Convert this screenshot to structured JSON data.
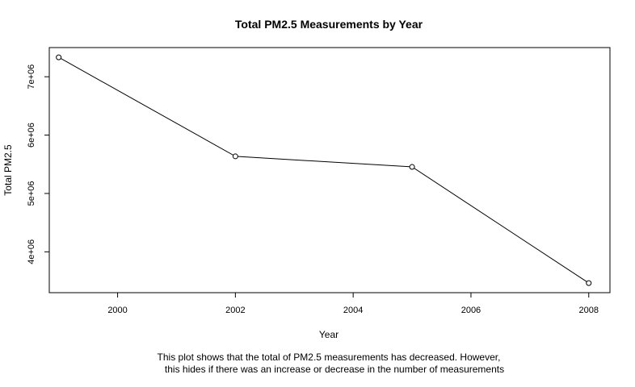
{
  "chart_data": {
    "type": "line",
    "title": "Total PM2.5 Measurements by Year",
    "xlabel": "Year",
    "ylabel": "Total PM2.5",
    "x": [
      1999,
      2002,
      2005,
      2008
    ],
    "y": [
      7332967,
      5635780,
      5454703,
      3464206
    ],
    "x_ticks": [
      "2000",
      "2002",
      "2004",
      "2006",
      "2008"
    ],
    "y_ticks": [
      "4e+06",
      "5e+06",
      "6e+06",
      "7e+06"
    ],
    "xlim": [
      1998.84,
      2008.36
    ],
    "ylim": [
      3300000,
      7500000
    ],
    "markers": "open-circle",
    "grid": false,
    "caption": [
      "This plot shows that the total of PM2.5 measurements has decreased. However,",
      "this hides if there was an increase or decrease in the number of measurements"
    ]
  }
}
